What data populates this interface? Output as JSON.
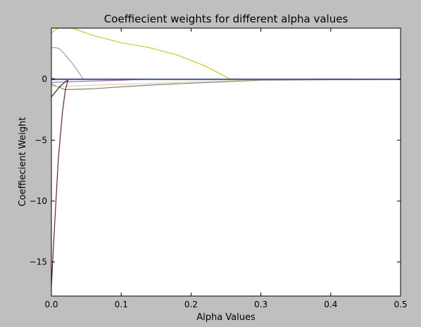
{
  "figure": {
    "background": "#bfbfbf",
    "plot_background": "#ffffff"
  },
  "chart_data": {
    "type": "line",
    "title": "Coeffiecient weights for different alpha values",
    "xlabel": "Alpha Values",
    "ylabel": "Coeffiecient Weight",
    "xlim": [
      0.0,
      0.5
    ],
    "ylim": [
      -17.8,
      4.2
    ],
    "xticks": [
      0.0,
      0.1,
      0.2,
      0.3,
      0.4,
      0.5
    ],
    "xtick_labels": [
      "0.0",
      "0.1",
      "0.2",
      "0.3",
      "0.4",
      "0.5"
    ],
    "yticks": [
      0,
      -5,
      -10,
      -15
    ],
    "ytick_labels": [
      "0",
      "−5",
      "−10",
      "−15"
    ],
    "grid": false,
    "series": [
      {
        "color": "#c8c832",
        "x": [
          0,
          0.004,
          0.01,
          0.03,
          0.06,
          0.1,
          0.14,
          0.18,
          0.22,
          0.255,
          0.28,
          0.3,
          0.5
        ],
        "y": [
          3.8,
          4.0,
          4.2,
          4.2,
          3.6,
          3.0,
          2.6,
          2.0,
          1.1,
          0.05,
          0,
          0,
          0
        ]
      },
      {
        "color": "#a0a0a0",
        "x": [
          0,
          0.006,
          0.012,
          0.02,
          0.03,
          0.04,
          0.046,
          0.5
        ],
        "y": [
          2.6,
          2.6,
          2.5,
          2.0,
          1.3,
          0.5,
          0,
          0
        ]
      },
      {
        "color": "#808080",
        "x": [
          0,
          0.02,
          0.06,
          0.1,
          0.15,
          0.2,
          0.25,
          0.3,
          0.5
        ],
        "y": [
          -0.4,
          -0.85,
          -0.78,
          -0.62,
          -0.45,
          -0.32,
          -0.2,
          -0.08,
          0
        ]
      },
      {
        "color": "#e6d29a",
        "x": [
          0,
          0.02,
          0.05,
          0.1,
          0.15,
          0.2,
          0.25,
          0.29,
          0.5
        ],
        "y": [
          -0.6,
          -0.58,
          -0.5,
          -0.42,
          -0.32,
          -0.22,
          -0.14,
          -0.05,
          0
        ]
      },
      {
        "color": "#9678b4",
        "x": [
          0,
          0.02,
          0.05,
          0.1,
          0.135,
          0.5
        ],
        "y": [
          -0.25,
          -0.22,
          -0.16,
          -0.08,
          0,
          0
        ]
      },
      {
        "color": "#282828",
        "x": [
          0,
          0.005,
          0.012,
          0.02,
          0.026,
          0.5
        ],
        "y": [
          -1.45,
          -1.1,
          -0.6,
          -0.2,
          0,
          0
        ]
      },
      {
        "color": "#6e1e3c",
        "x": [
          0,
          0.005,
          0.01,
          0.016,
          0.02,
          0.024,
          0.5
        ],
        "y": [
          -17.0,
          -11.5,
          -6.5,
          -2.6,
          -0.9,
          0,
          0
        ]
      },
      {
        "color": "#b49696",
        "x": [
          0,
          0.01,
          0.5
        ],
        "y": [
          0.1,
          0,
          0
        ]
      },
      {
        "color": "#d2aa4b",
        "x": [
          0,
          0.3,
          0.5
        ],
        "y": [
          0.02,
          0,
          0
        ]
      },
      {
        "color": "#3c50a0",
        "x": [
          0,
          0.5
        ],
        "y": [
          0,
          0
        ]
      }
    ]
  }
}
